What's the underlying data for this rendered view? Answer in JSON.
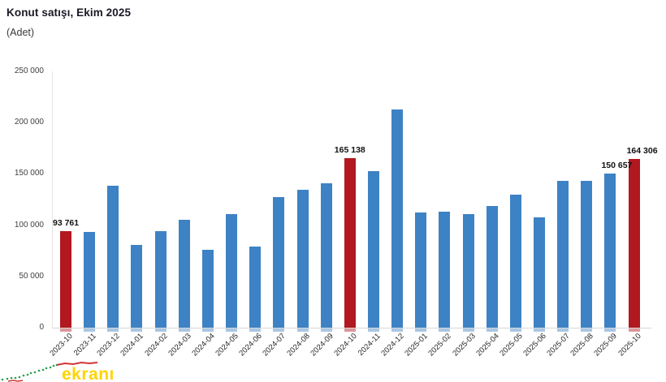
{
  "header": {
    "title": "Konut satışı, Ekim 2025",
    "subtitle": "(Adet)"
  },
  "watermark": {
    "text": "ekranı",
    "text_color": "#ffd400",
    "sparkline_green": "#2f9e4f",
    "sparkline_red": "#d23535"
  },
  "chart_data": {
    "type": "bar",
    "title": "Konut satışı, Ekim 2025",
    "ylabel": "(Adet)",
    "xlabel": "",
    "grid": false,
    "legend": false,
    "ylim": [
      0,
      250000
    ],
    "y_ticks": [
      {
        "value": 0,
        "label": "0"
      },
      {
        "value": 50000,
        "label": "50 000"
      },
      {
        "value": 100000,
        "label": "100 000"
      },
      {
        "value": 150000,
        "label": "150 000"
      },
      {
        "value": 200000,
        "label": "200 000"
      },
      {
        "value": 250000,
        "label": "250 000"
      }
    ],
    "bar_color": "#3d82c4",
    "highlight_color": "#b1181f",
    "categories": [
      "2023-10",
      "2023-11",
      "2023-12",
      "2024-01",
      "2024-02",
      "2024-03",
      "2024-04",
      "2024-05",
      "2024-06",
      "2024-07",
      "2024-08",
      "2024-09",
      "2024-10",
      "2024-11",
      "2024-12",
      "2025-01",
      "2025-02",
      "2025-03",
      "2025-04",
      "2025-05",
      "2025-06",
      "2025-07",
      "2025-08",
      "2025-09",
      "2025-10"
    ],
    "values": [
      93761,
      93178,
      138577,
      80308,
      93902,
      105476,
      75569,
      110588,
      79313,
      127088,
      134155,
      140919,
      165138,
      153014,
      212637,
      112173,
      112818,
      110795,
      118359,
      130025,
      107723,
      142858,
      143319,
      150657,
      164306
    ],
    "highlighted_categories": [
      "2023-10",
      "2024-10",
      "2025-10"
    ],
    "data_labels": [
      {
        "category": "2023-10",
        "text": "93 761",
        "dx": 0
      },
      {
        "category": "2024-10",
        "text": "165 138",
        "dx": 0
      },
      {
        "category": "2025-09",
        "text": "150 657",
        "dx": 8
      },
      {
        "category": "2025-10",
        "text": "164 306",
        "dx": 10
      }
    ]
  }
}
